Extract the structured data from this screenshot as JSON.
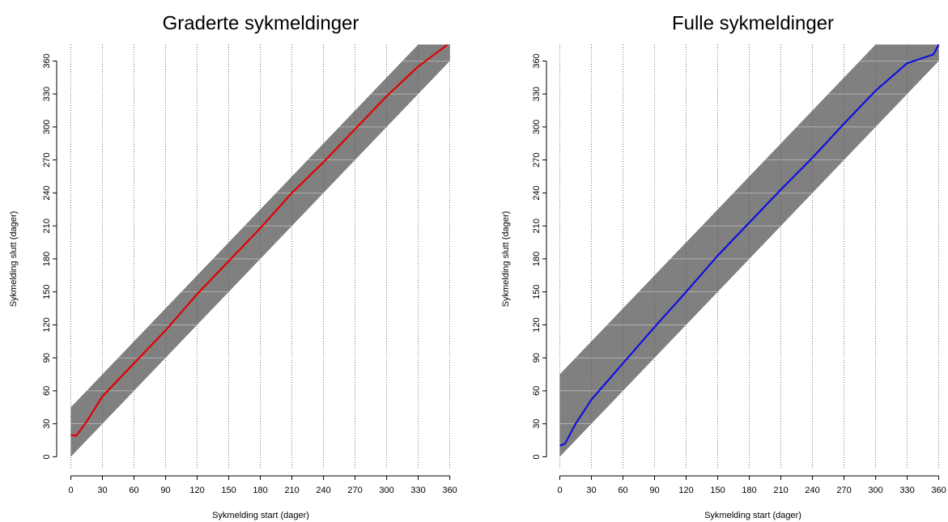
{
  "chart_data": [
    {
      "type": "scatter",
      "title": "Graderte sykmeldinger",
      "xlabel": "Sykmelding start (dager)",
      "ylabel": "Sykmelding slutt (dager)",
      "xlim": [
        -5,
        368
      ],
      "ylim": [
        -10,
        375
      ],
      "xticks": [
        0,
        30,
        60,
        90,
        120,
        150,
        180,
        210,
        240,
        270,
        300,
        330,
        360
      ],
      "yticks": [
        0,
        30,
        60,
        90,
        120,
        150,
        180,
        210,
        240,
        270,
        300,
        330,
        360
      ],
      "grid": true,
      "band": {
        "color": "#808080",
        "x": [
          0,
          360
        ],
        "lower": [
          0,
          360
        ],
        "upper": [
          45,
          405
        ]
      },
      "series": [
        {
          "color": "#e00000",
          "x": [
            0,
            5,
            15,
            30,
            60,
            90,
            120,
            150,
            180,
            210,
            240,
            270,
            300,
            330,
            358
          ],
          "values": [
            20,
            19,
            32,
            55,
            85,
            115,
            148,
            178,
            208,
            240,
            268,
            298,
            328,
            355,
            375
          ]
        }
      ]
    },
    {
      "type": "scatter",
      "title": "Fulle sykmeldinger",
      "xlabel": "Sykmelding start (dager)",
      "ylabel": "Sykmelding slutt (dager)",
      "xlim": [
        -5,
        368
      ],
      "ylim": [
        -10,
        375
      ],
      "xticks": [
        0,
        30,
        60,
        90,
        120,
        150,
        180,
        210,
        240,
        270,
        300,
        330,
        360
      ],
      "yticks": [
        0,
        30,
        60,
        90,
        120,
        150,
        180,
        210,
        240,
        270,
        300,
        330,
        360
      ],
      "grid": true,
      "band": {
        "color": "#808080",
        "x": [
          0,
          360
        ],
        "lower": [
          0,
          360
        ],
        "upper": [
          75,
          435
        ]
      },
      "series": [
        {
          "color": "#1010e0",
          "x": [
            0,
            5,
            15,
            30,
            60,
            90,
            120,
            150,
            180,
            210,
            240,
            270,
            300,
            330,
            355,
            360
          ],
          "values": [
            10,
            12,
            30,
            52,
            85,
            118,
            150,
            183,
            213,
            243,
            272,
            303,
            333,
            358,
            366,
            375
          ]
        }
      ]
    }
  ]
}
